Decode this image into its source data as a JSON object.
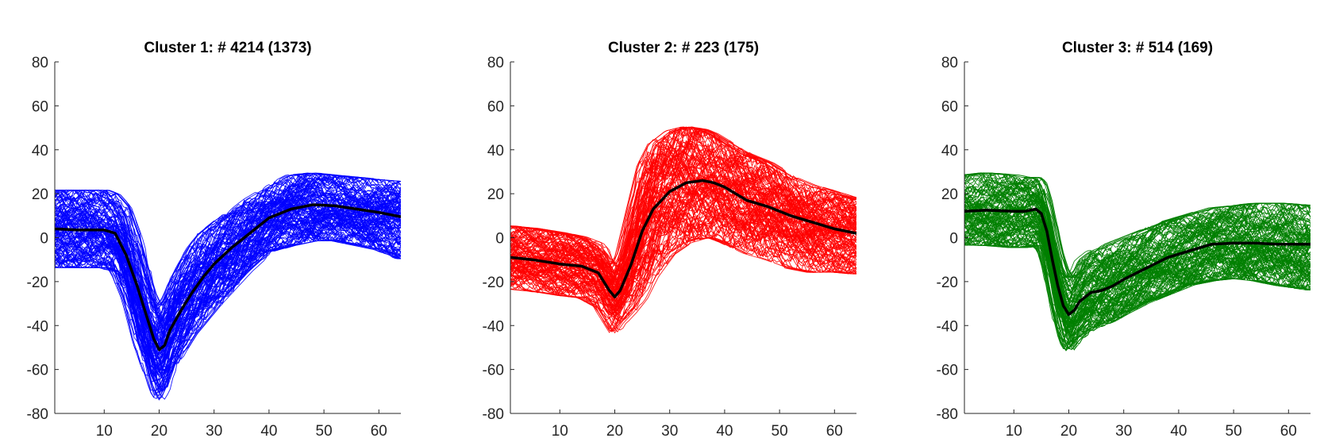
{
  "chart_data": [
    {
      "type": "line",
      "title": "Cluster 1: # 4214 (1373)",
      "color": "#0000ff",
      "mean_color": "#000000",
      "xlim": [
        1,
        64
      ],
      "ylim": [
        -80,
        80
      ],
      "xticks": [
        10,
        20,
        30,
        40,
        50,
        60
      ],
      "yticks": [
        -80,
        -60,
        -40,
        -20,
        0,
        20,
        40,
        60,
        80
      ],
      "mean": {
        "x": [
          1,
          5,
          10,
          12,
          14,
          16,
          18,
          19,
          20,
          21,
          22,
          24,
          26,
          28,
          30,
          33,
          36,
          40,
          44,
          48,
          52,
          56,
          60,
          64
        ],
        "y": [
          4,
          3.5,
          3.5,
          2,
          -8,
          -22,
          -38,
          -46,
          -51,
          -49,
          -42,
          -33,
          -25,
          -18,
          -12,
          -5,
          1,
          9,
          13,
          15,
          14.5,
          13,
          11.5,
          9.5
        ]
      },
      "envelope": {
        "x": [
          1,
          5,
          10,
          12,
          14,
          16,
          18,
          19,
          20,
          21,
          22,
          24,
          26,
          28,
          30,
          33,
          36,
          40,
          44,
          48,
          52,
          56,
          60,
          64
        ],
        "upper": [
          20,
          20,
          20,
          18,
          12,
          -2,
          -20,
          -28,
          -33,
          -30,
          -24,
          -14,
          -6,
          0,
          4,
          10,
          16,
          22,
          27,
          28,
          27,
          26,
          25,
          24
        ],
        "lower": [
          -12,
          -12,
          -12,
          -14,
          -26,
          -45,
          -60,
          -68,
          -72,
          -68,
          -60,
          -50,
          -42,
          -36,
          -30,
          -22,
          -14,
          -5,
          -2,
          0,
          0,
          -2,
          -4,
          -8
        ]
      }
    },
    {
      "type": "line",
      "title": "Cluster 2: # 223 (175)",
      "color": "#ff0000",
      "mean_color": "#000000",
      "xlim": [
        1,
        64
      ],
      "ylim": [
        -80,
        80
      ],
      "xticks": [
        10,
        20,
        30,
        40,
        50,
        60
      ],
      "yticks": [
        -80,
        -60,
        -40,
        -20,
        0,
        20,
        40,
        60,
        80
      ],
      "mean": {
        "x": [
          1,
          5,
          10,
          14,
          17,
          19,
          20,
          21,
          23,
          25,
          27,
          30,
          33,
          36,
          38,
          40,
          44,
          48,
          52,
          56,
          60,
          64
        ],
        "y": [
          -9,
          -10,
          -12,
          -13,
          -16,
          -24,
          -27,
          -24,
          -12,
          3,
          13,
          21,
          25,
          26,
          25,
          23,
          17,
          14,
          10,
          7,
          4,
          2
        ]
      },
      "envelope": {
        "x": [
          1,
          5,
          10,
          14,
          17,
          19,
          20,
          21,
          23,
          25,
          27,
          30,
          33,
          36,
          38,
          40,
          44,
          48,
          52,
          56,
          60,
          64
        ],
        "upper": [
          4,
          3,
          1,
          -1,
          -4,
          -10,
          -14,
          -10,
          10,
          30,
          40,
          46,
          48,
          47,
          45,
          42,
          36,
          32,
          26,
          22,
          19,
          16
        ],
        "lower": [
          -22,
          -23,
          -25,
          -26,
          -30,
          -38,
          -42,
          -38,
          -32,
          -25,
          -15,
          -5,
          0,
          2,
          2,
          0,
          -5,
          -8,
          -12,
          -14,
          -14,
          -15
        ]
      }
    },
    {
      "type": "line",
      "title": "Cluster 3: # 514 (169)",
      "color": "#008000",
      "mean_color": "#000000",
      "xlim": [
        1,
        64
      ],
      "ylim": [
        -80,
        80
      ],
      "xticks": [
        10,
        20,
        30,
        40,
        50,
        60
      ],
      "yticks": [
        -80,
        -60,
        -40,
        -20,
        0,
        20,
        40,
        60,
        80
      ],
      "mean": {
        "x": [
          1,
          5,
          10,
          12,
          14,
          15,
          16,
          17,
          18,
          19,
          20,
          21,
          22,
          24,
          26,
          28,
          30,
          34,
          38,
          42,
          46,
          50,
          54,
          58,
          64
        ],
        "y": [
          12,
          12.5,
          12,
          12,
          13,
          11,
          3,
          -10,
          -22,
          -31,
          -35,
          -33,
          -29,
          -25,
          -24,
          -22,
          -19,
          -14,
          -9,
          -6,
          -3,
          -2.5,
          -2.5,
          -3,
          -3
        ]
      },
      "envelope": {
        "x": [
          1,
          5,
          10,
          12,
          14,
          15,
          16,
          17,
          18,
          19,
          20,
          21,
          22,
          24,
          26,
          28,
          30,
          34,
          38,
          42,
          46,
          50,
          54,
          58,
          64
        ],
        "upper": [
          27,
          28,
          27,
          26,
          26,
          24,
          16,
          4,
          -8,
          -16,
          -20,
          -18,
          -12,
          -8,
          -6,
          -4,
          -2,
          2,
          6,
          9,
          12,
          13,
          14,
          14,
          13
        ],
        "lower": [
          -2,
          -2,
          -3,
          -3,
          -2,
          -4,
          -12,
          -24,
          -36,
          -46,
          -50,
          -47,
          -44,
          -40,
          -38,
          -36,
          -33,
          -28,
          -24,
          -20,
          -18,
          -17,
          -18,
          -20,
          -22
        ]
      }
    }
  ]
}
